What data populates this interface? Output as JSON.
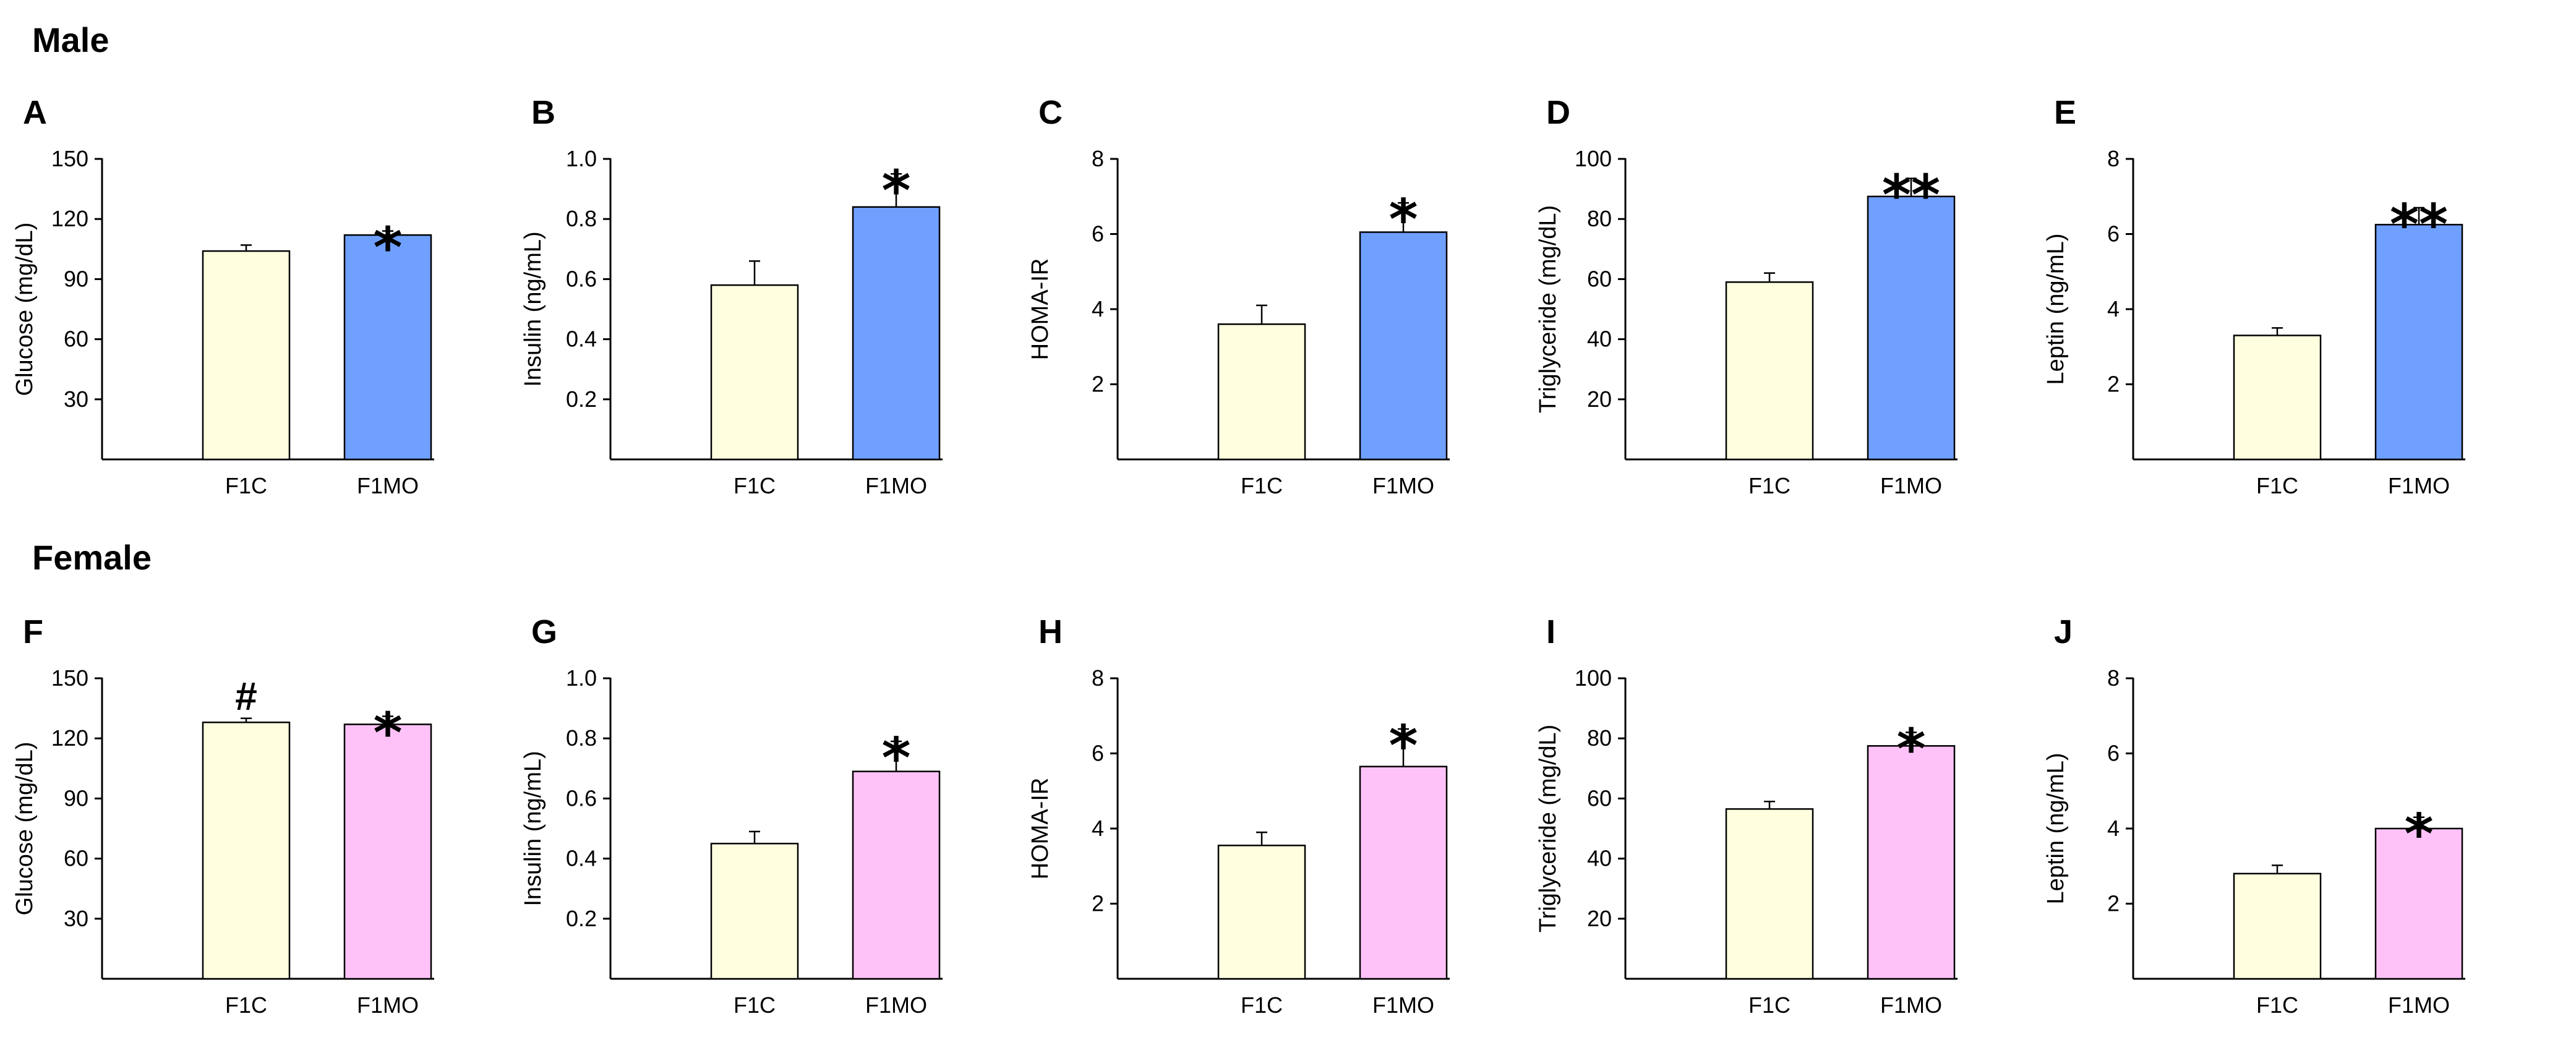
{
  "sections": [
    {
      "title": "Male"
    },
    {
      "title": "Female"
    }
  ],
  "chart_data": [
    {
      "panel": "A",
      "type": "bar",
      "section": "Male",
      "categories": [
        "F1C",
        "F1MO"
      ],
      "values": [
        104,
        112
      ],
      "errors": [
        3,
        2
      ],
      "ylabel": "Glucose (mg/dL)",
      "ylim": [
        0,
        150
      ],
      "yticks": [
        30,
        60,
        90,
        120,
        150
      ],
      "tick_labels": [
        "30",
        "60",
        "90",
        "120",
        "150"
      ],
      "series_colors": [
        "#ffffe0",
        "#6fa0ff"
      ],
      "annotations": [
        "",
        "*"
      ]
    },
    {
      "panel": "B",
      "type": "bar",
      "section": "Male",
      "categories": [
        "F1C",
        "F1MO"
      ],
      "values": [
        0.58,
        0.84
      ],
      "errors": [
        0.08,
        0.11
      ],
      "ylabel": "Insulin (ng/mL)",
      "ylim": [
        0,
        1.0
      ],
      "yticks": [
        0.2,
        0.4,
        0.6,
        0.8,
        1.0
      ],
      "tick_labels": [
        "0.2",
        "0.4",
        "0.6",
        "0.8",
        "1.0"
      ],
      "series_colors": [
        "#ffffe0",
        "#6fa0ff"
      ],
      "annotations": [
        "",
        "*"
      ]
    },
    {
      "panel": "C",
      "type": "bar",
      "section": "Male",
      "categories": [
        "F1C",
        "F1MO"
      ],
      "values": [
        3.6,
        6.05
      ],
      "errors": [
        0.5,
        0.78
      ],
      "ylabel": "HOMA-IR",
      "ylim": [
        0,
        8
      ],
      "yticks": [
        2,
        4,
        6,
        8
      ],
      "tick_labels": [
        "2",
        "4",
        "6",
        "8"
      ],
      "series_colors": [
        "#ffffe0",
        "#6fa0ff"
      ],
      "annotations": [
        "",
        "*"
      ]
    },
    {
      "panel": "D",
      "type": "bar",
      "section": "Male",
      "categories": [
        "F1C",
        "F1MO"
      ],
      "values": [
        59,
        87.5
      ],
      "errors": [
        3,
        6
      ],
      "ylabel": "Triglyceride (mg/dL)",
      "ylim": [
        0,
        100
      ],
      "yticks": [
        20,
        40,
        60,
        80,
        100
      ],
      "tick_labels": [
        "20",
        "40",
        "60",
        "80",
        "100"
      ],
      "series_colors": [
        "#ffffe0",
        "#6fa0ff"
      ],
      "annotations": [
        "",
        "**"
      ]
    },
    {
      "panel": "E",
      "type": "bar",
      "section": "Male",
      "categories": [
        "F1C",
        "F1MO"
      ],
      "values": [
        3.3,
        6.25
      ],
      "errors": [
        0.2,
        0.45
      ],
      "ylabel": "Leptin (ng/mL)",
      "ylim": [
        0,
        8
      ],
      "yticks": [
        2,
        4,
        6,
        8
      ],
      "tick_labels": [
        "2",
        "4",
        "6",
        "8"
      ],
      "series_colors": [
        "#ffffe0",
        "#6fa0ff"
      ],
      "annotations": [
        "",
        "**"
      ]
    },
    {
      "panel": "F",
      "type": "bar",
      "section": "Female",
      "categories": [
        "F1C",
        "F1MO"
      ],
      "values": [
        128,
        127
      ],
      "errors": [
        2,
        4
      ],
      "ylabel": "Glucose (mg/dL)",
      "ylim": [
        0,
        150
      ],
      "yticks": [
        30,
        60,
        90,
        120,
        150
      ],
      "tick_labels": [
        "30",
        "60",
        "90",
        "120",
        "150"
      ],
      "series_colors": [
        "#ffffe0",
        "#ffc2f8"
      ],
      "annotations": [
        "#",
        "*"
      ]
    },
    {
      "panel": "G",
      "type": "bar",
      "section": "Female",
      "categories": [
        "F1C",
        "F1MO"
      ],
      "values": [
        0.45,
        0.69
      ],
      "errors": [
        0.04,
        0.1
      ],
      "ylabel": "Insulin (ng/mL)",
      "ylim": [
        0,
        1.0
      ],
      "yticks": [
        0.2,
        0.4,
        0.6,
        0.8,
        1.0
      ],
      "tick_labels": [
        "0.2",
        "0.4",
        "0.6",
        "0.8",
        "1.0"
      ],
      "series_colors": [
        "#ffffe0",
        "#ffc2f8"
      ],
      "annotations": [
        "",
        "*"
      ]
    },
    {
      "panel": "H",
      "type": "bar",
      "section": "Female",
      "categories": [
        "F1C",
        "F1MO"
      ],
      "values": [
        3.55,
        5.65
      ],
      "errors": [
        0.35,
        1.0
      ],
      "ylabel": "HOMA-IR",
      "ylim": [
        0,
        8
      ],
      "yticks": [
        2,
        4,
        6,
        8
      ],
      "tick_labels": [
        "2",
        "4",
        "6",
        "8"
      ],
      "series_colors": [
        "#ffffe0",
        "#ffc2f8"
      ],
      "annotations": [
        "",
        "*"
      ]
    },
    {
      "panel": "I",
      "type": "bar",
      "section": "Female",
      "categories": [
        "F1C",
        "F1MO"
      ],
      "values": [
        56.5,
        77.5
      ],
      "errors": [
        2.5,
        4.5
      ],
      "ylabel": "Triglyceride (mg/dL)",
      "ylim": [
        0,
        100
      ],
      "yticks": [
        20,
        40,
        60,
        80,
        100
      ],
      "tick_labels": [
        "20",
        "40",
        "60",
        "80",
        "100"
      ],
      "series_colors": [
        "#ffffe0",
        "#ffc2f8"
      ],
      "annotations": [
        "",
        "*"
      ]
    },
    {
      "panel": "J",
      "type": "bar",
      "section": "Female",
      "categories": [
        "F1C",
        "F1MO"
      ],
      "values": [
        2.8,
        4.0
      ],
      "errors": [
        0.22,
        0.3
      ],
      "ylabel": "Leptin (ng/mL)",
      "ylim": [
        0,
        8
      ],
      "yticks": [
        2,
        4,
        6,
        8
      ],
      "tick_labels": [
        "2",
        "4",
        "6",
        "8"
      ],
      "series_colors": [
        "#ffffe0",
        "#ffc2f8"
      ],
      "annotations": [
        "",
        "*"
      ]
    }
  ]
}
